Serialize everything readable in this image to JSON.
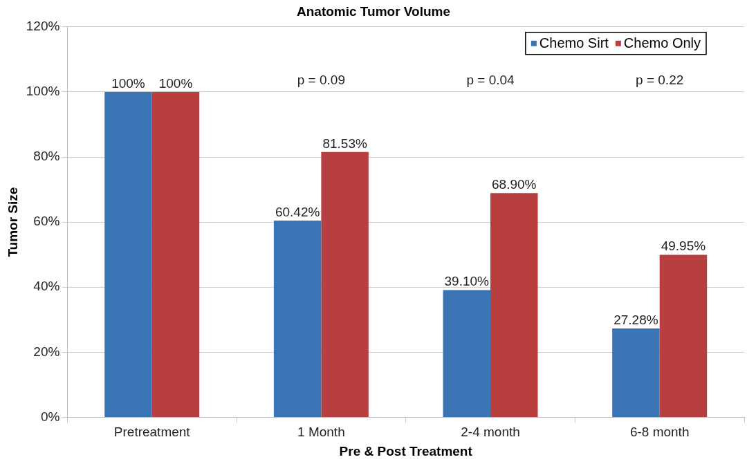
{
  "chart_data": {
    "type": "bar",
    "title": "Anatomic Tumor Volume",
    "xlabel": "Pre & Post Treatment",
    "ylabel": "Tumor Size",
    "categories": [
      "Pretreatment",
      "1 Month",
      "2-4 month",
      "6-8 month"
    ],
    "series": [
      {
        "name": "Chemo Sirt",
        "color": "#3b74b4",
        "values": [
          100,
          60.42,
          39.1,
          27.28
        ],
        "value_labels": [
          "100%",
          "60.42%",
          "39.10%",
          "27.28%"
        ]
      },
      {
        "name": "Chemo Only",
        "color": "#b73f40",
        "values": [
          100,
          81.53,
          68.9,
          49.95
        ],
        "value_labels": [
          "100%",
          "81.53%",
          "68.90%",
          "49.95%"
        ]
      }
    ],
    "ylim": [
      0,
      120
    ],
    "yticks": [
      {
        "value": 0,
        "label": "0%"
      },
      {
        "value": 20,
        "label": "20%"
      },
      {
        "value": 40,
        "label": "40%"
      },
      {
        "value": 60,
        "label": "60%"
      },
      {
        "value": 80,
        "label": "80%"
      },
      {
        "value": 100,
        "label": "100%"
      },
      {
        "value": 120,
        "label": "120%"
      }
    ],
    "annotations": [
      "p = 0.09",
      "p = 0.04",
      "p = 0.22"
    ],
    "grid": "y",
    "legend": "top right"
  }
}
